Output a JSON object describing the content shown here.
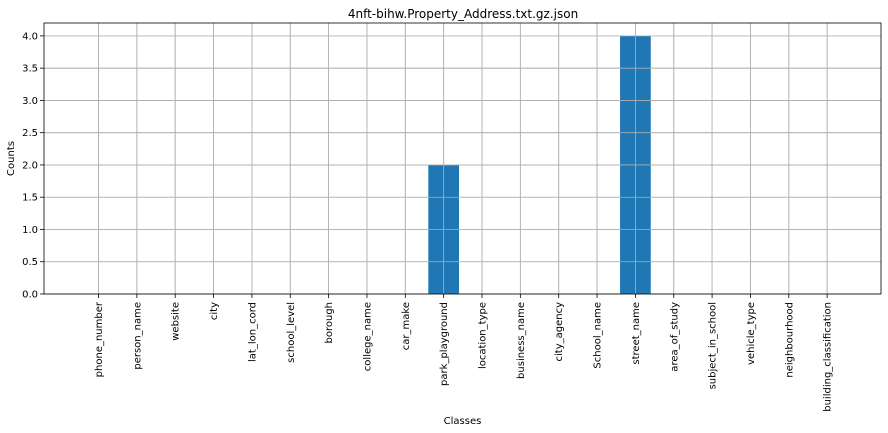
{
  "chart_data": {
    "type": "bar",
    "title": "4nft-bihw.Property_Address.txt.gz.json",
    "xlabel": "Classes",
    "ylabel": "Counts",
    "categories": [
      "phone_number",
      "person_name",
      "website",
      "city",
      "lat_lon_cord",
      "school_level",
      "borough",
      "college_name",
      "car_make",
      "park_playground",
      "location_type",
      "business_name",
      "city_agency",
      "School_name",
      "street_name",
      "area_of_study",
      "subject_in_school",
      "vehicle_type",
      "neighbourhood",
      "building_classification"
    ],
    "values": [
      0,
      0,
      0,
      0,
      0,
      0,
      0,
      0,
      0,
      2,
      0,
      0,
      0,
      0,
      4,
      0,
      0,
      0,
      0,
      0
    ],
    "ylim": [
      0,
      4.2
    ],
    "yticks": [
      "0.0",
      "0.5",
      "1.0",
      "1.5",
      "2.0",
      "2.5",
      "3.0",
      "3.5",
      "4.0"
    ],
    "grid": true,
    "bar_color": "#1f77b4",
    "grid_color": "#b0b0b0"
  }
}
